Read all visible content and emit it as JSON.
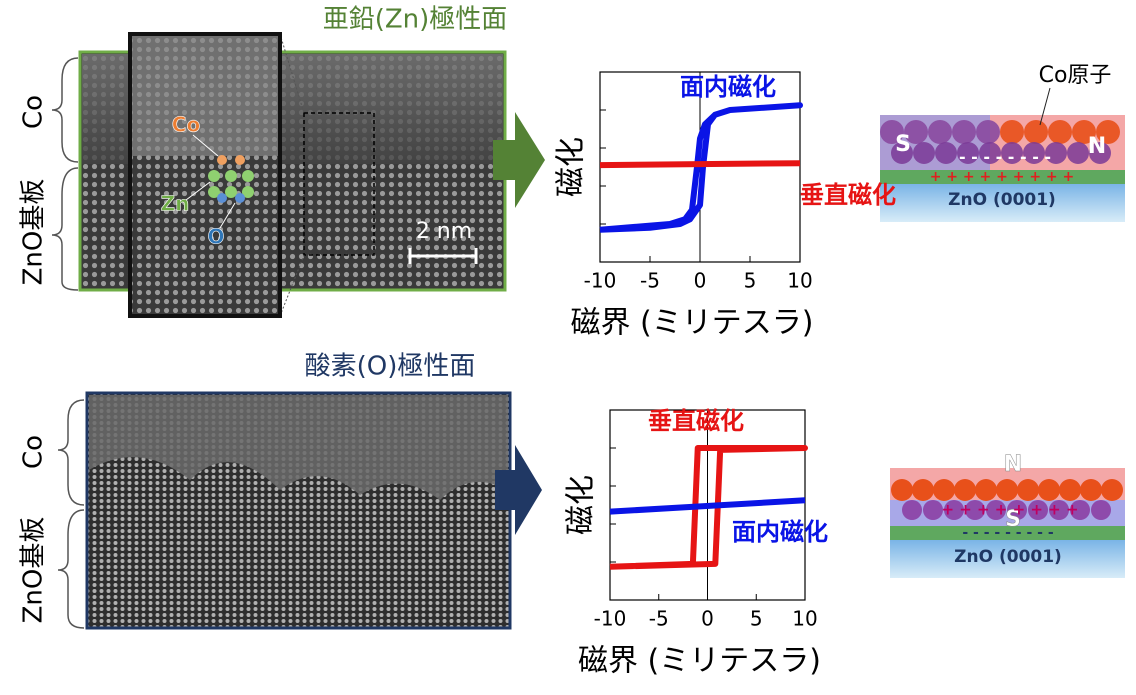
{
  "chart_data": [
    {
      "type": "line",
      "xlabel": "磁界 (ミリテスラ)",
      "ylabel": "磁化",
      "xlim": [
        -10,
        10
      ],
      "ylim": [
        -1,
        1
      ],
      "xticks": [
        -10,
        -5,
        0,
        5,
        10
      ],
      "series": [
        {
          "name": "面内磁化",
          "color": "#0a14e6",
          "x": [
            -10,
            -5,
            -2,
            -1,
            0,
            0.3,
            0.8,
            1.5,
            3,
            10,
            10,
            3,
            1.5,
            0.5,
            0,
            -0.3,
            -0.8,
            -1.5,
            -3,
            -10
          ],
          "values": [
            -0.66,
            -0.64,
            -0.6,
            -0.55,
            -0.4,
            0,
            0.45,
            0.55,
            0.6,
            0.65,
            0.65,
            0.6,
            0.55,
            0.45,
            0.3,
            0,
            -0.45,
            -0.55,
            -0.6,
            -0.66
          ]
        },
        {
          "name": "垂直磁化",
          "color": "#e61414",
          "x": [
            -10,
            10
          ],
          "values": [
            0.02,
            0.04
          ]
        }
      ]
    },
    {
      "type": "line",
      "xlabel": "磁界 (ミリテスラ)",
      "ylabel": "磁化",
      "xlim": [
        -10,
        10
      ],
      "ylim": [
        -1,
        1
      ],
      "xticks": [
        -10,
        -5,
        0,
        5,
        10
      ],
      "series": [
        {
          "name": "垂直磁化",
          "color": "#e61414",
          "x": [
            -10,
            0.8,
            1.3,
            10,
            -1,
            -1.5,
            -10
          ],
          "values": [
            -0.65,
            -0.62,
            0.58,
            0.6,
            0.6,
            -0.62,
            -0.65
          ]
        },
        {
          "name": "面内磁化",
          "color": "#0a14e6",
          "x": [
            -10,
            10
          ],
          "values": [
            -0.07,
            0.05
          ]
        }
      ]
    }
  ],
  "panels": [
    {
      "title": "亜鉛(Zn)極性面",
      "layer_label": "Co",
      "substrate_label": "ZnO基板",
      "inset_labels": [
        "Co",
        "Zn",
        "O"
      ],
      "scale_bar": "2 nm",
      "diagram": {
        "atom_label": "Co原子",
        "poles": [
          "S",
          "N"
        ],
        "upper_charges": "- - - - - - - -",
        "lower_charges": "+ + + + + + + + +",
        "substrate": "ZnO (0001)"
      }
    },
    {
      "title": "酸素(O)極性面",
      "layer_label": "Co",
      "substrate_label": "ZnO基板",
      "diagram": {
        "poles": [
          "N",
          "S"
        ],
        "upper_charges": "+ + + + + + + +",
        "lower_charges": "- - - - - - - - -",
        "substrate": "ZnO (0001)"
      }
    }
  ]
}
